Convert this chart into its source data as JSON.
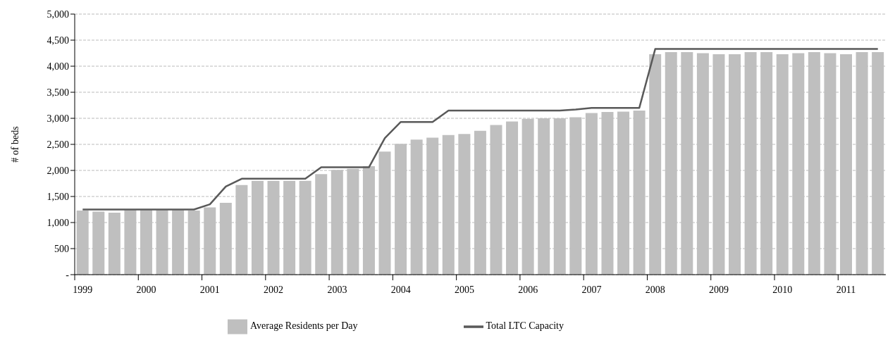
{
  "chart_data": {
    "type": "bar",
    "ylabel": "# of beds",
    "categories": [
      "1999",
      null,
      null,
      null,
      "2000",
      null,
      null,
      null,
      "2001",
      null,
      null,
      null,
      "2002",
      null,
      null,
      null,
      "2003",
      null,
      null,
      null,
      "2004",
      null,
      null,
      null,
      "2005",
      null,
      null,
      null,
      "2006",
      null,
      null,
      null,
      "2007",
      null,
      null,
      null,
      "2008",
      null,
      null,
      null,
      "2009",
      null,
      null,
      null,
      "2010",
      null,
      null,
      null,
      "2011",
      null,
      null
    ],
    "series": [
      {
        "name": "Average Residents per Day",
        "color": "#bfbfbf",
        "values": [
          1230,
          1210,
          1190,
          1240,
          1240,
          1240,
          1240,
          1230,
          1290,
          1380,
          1720,
          1800,
          1800,
          1800,
          1800,
          1930,
          2010,
          2030,
          2080,
          2360,
          2510,
          2590,
          2630,
          2680,
          2700,
          2760,
          2870,
          2940,
          2990,
          3000,
          3000,
          3020,
          3100,
          3120,
          3130,
          3150,
          4230,
          4270,
          4270,
          4250,
          4230,
          4230,
          4270,
          4270,
          4230,
          4250,
          4270,
          4250,
          4230,
          4270,
          4270
        ]
      },
      {
        "name": "Total LTC Capacity",
        "type": "line",
        "color": "#595959",
        "values": [
          1250,
          1250,
          1250,
          1250,
          1250,
          1250,
          1250,
          1250,
          1350,
          1690,
          1840,
          1840,
          1840,
          1840,
          1840,
          2060,
          2060,
          2060,
          2060,
          2620,
          2930,
          2930,
          2930,
          3150,
          3150,
          3150,
          3150,
          3150,
          3150,
          3150,
          3150,
          3170,
          3200,
          3200,
          3200,
          3200,
          4330,
          4330,
          4330,
          4330,
          4330,
          4330,
          4330,
          4330,
          4330,
          4330,
          4330,
          4330,
          4330,
          4330,
          4330
        ]
      }
    ],
    "ylim": [
      0,
      5000
    ],
    "yticks": [
      {
        "value": 0,
        "label": "-"
      },
      500,
      {
        "value": 1000,
        "label": "1,000"
      },
      {
        "value": 1500,
        "label": "1,500"
      },
      {
        "value": 2000,
        "label": "2,000"
      },
      {
        "value": 2500,
        "label": "2,500"
      },
      {
        "value": 3000,
        "label": "3,000"
      },
      {
        "value": 3500,
        "label": "3,500"
      },
      {
        "value": 4000,
        "label": "4,000"
      },
      {
        "value": 4500,
        "label": "4,500"
      },
      {
        "value": 5000,
        "label": "5,000"
      }
    ],
    "grid": "y",
    "legend": "bottom",
    "marker": "none",
    "line_style": "solid"
  }
}
